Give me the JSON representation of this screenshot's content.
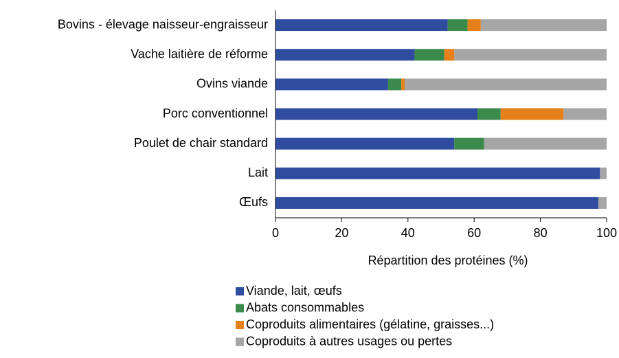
{
  "chart_data": {
    "type": "stacked_barh",
    "categories": [
      "Bovins - élevage naisseur-engraisseur",
      "Vache laitière de réforme",
      "Ovins viande",
      "Porc conventionnel",
      "Poulet de chair standard",
      "Lait",
      "Œufs"
    ],
    "series": [
      {
        "name": "Viande, lait, œufs",
        "color": "#2f4c9f",
        "values": [
          52,
          42,
          34,
          61,
          54,
          98,
          97.5
        ]
      },
      {
        "name": "Abats consommables",
        "color": "#3b8a4c",
        "values": [
          6,
          9,
          4,
          7,
          9,
          0,
          0
        ]
      },
      {
        "name": "Coproduits alimentaires (gélatine, graisses...)",
        "color": "#e5801a",
        "values": [
          4,
          3,
          1,
          19,
          0,
          0,
          0
        ]
      },
      {
        "name": "Coproduits  à autres usages ou pertes",
        "color": "#a6a6a6",
        "values": [
          38,
          46,
          61,
          13,
          37,
          2,
          2.5
        ]
      }
    ],
    "x_label": "Répartition des protéines (%)",
    "xlim": [
      0,
      100
    ],
    "xticks": [
      0,
      20,
      40,
      60,
      80,
      100
    ],
    "grid": false,
    "legend": "bottom"
  }
}
